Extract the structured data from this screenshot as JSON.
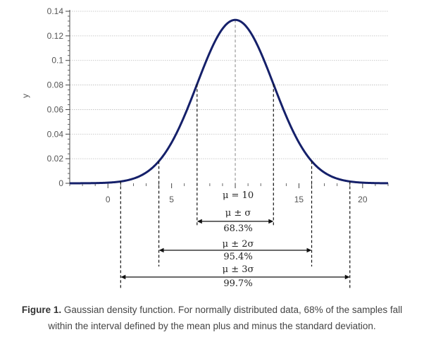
{
  "chart_data": {
    "type": "line",
    "title": "",
    "xlabel": "",
    "ylabel": "y",
    "xlim": [
      -3,
      22
    ],
    "ylim": [
      0,
      0.14
    ],
    "grid": "horizontal dotted",
    "mean": 10,
    "sigma": 3,
    "x_ticks": [
      0,
      5,
      10,
      15,
      20
    ],
    "x_tick_labels": [
      "0",
      "5",
      "",
      "15",
      "20"
    ],
    "y_ticks": [
      0,
      0.02,
      0.04,
      0.06,
      0.08,
      0.1,
      0.12,
      0.14
    ],
    "y_tick_labels": [
      "0",
      "0.02",
      "0.04",
      "0.06",
      "0.08",
      "0.1",
      "0.12",
      "0.14"
    ],
    "series": [
      {
        "name": "Gaussian density",
        "function": "normal_pdf",
        "color": "#15206a"
      }
    ],
    "mean_label": "μ = 10",
    "intervals": [
      {
        "k": 1,
        "label": "μ ± σ",
        "percent": "68.3%"
      },
      {
        "k": 2,
        "label": "μ ± 2σ",
        "percent": "95.4%"
      },
      {
        "k": 3,
        "label": "μ ± 3σ",
        "percent": "99.7%"
      }
    ]
  },
  "caption": {
    "label": "Figure 1.",
    "text": "Gaussian density function. For normally distributed data, 68% of the samples fall within the interval defined by the mean plus and minus the standard deviation."
  },
  "colors": {
    "curve": "#15206a",
    "axis": "#444444",
    "grid": "#bbbbbb",
    "mean_line": "#999999"
  }
}
